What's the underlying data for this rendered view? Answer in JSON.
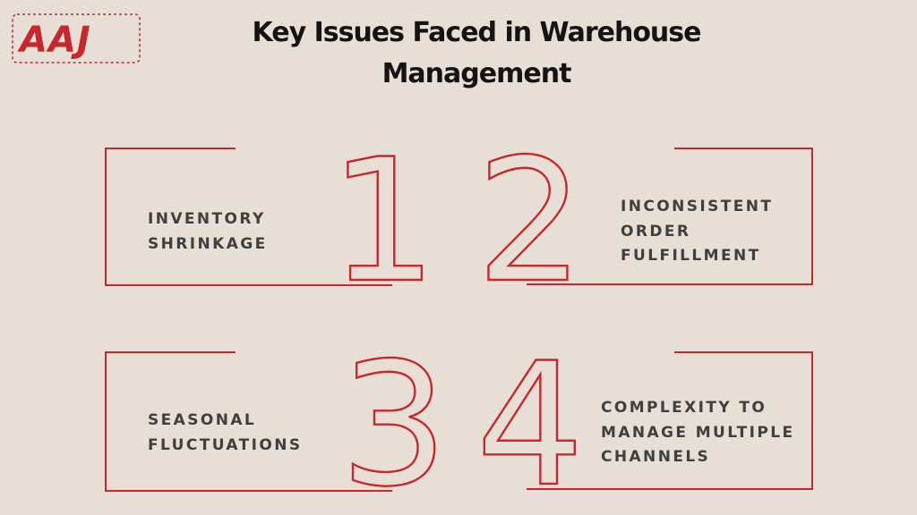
{
  "logo": {
    "text": "AAJ",
    "color": "#c8272c"
  },
  "header": {
    "title_line1": "Key Issues Faced in Warehouse",
    "title_line2": "Management"
  },
  "accent_color": "#c8272c",
  "issues": [
    {
      "number": "1",
      "lines": [
        "INVENTORY",
        "SHRINKAGE"
      ]
    },
    {
      "number": "2",
      "lines": [
        "INCONSISTENT",
        "ORDER",
        "FULFILLMENT"
      ]
    },
    {
      "number": "3",
      "lines": [
        "SEASONAL",
        "FLUCTUATIONS"
      ]
    },
    {
      "number": "4",
      "lines": [
        "COMPLEXITY TO",
        "MANAGE MULTIPLE",
        "CHANNELS"
      ]
    }
  ]
}
